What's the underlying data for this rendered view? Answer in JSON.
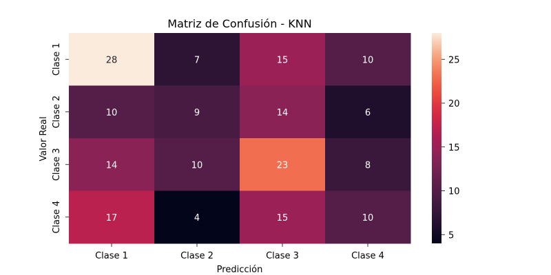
{
  "chart_data": {
    "type": "heatmap",
    "title": "Matriz de Confusión - KNN",
    "xlabel": "Predicción",
    "ylabel": "Valor Real",
    "x_categories": [
      "Clase 1",
      "Clase 2",
      "Clase 3",
      "Clase 4"
    ],
    "y_categories": [
      "Clase 1",
      "Clase 2",
      "Clase 3",
      "Clase 4"
    ],
    "values": [
      [
        28,
        7,
        15,
        10
      ],
      [
        10,
        9,
        14,
        6
      ],
      [
        14,
        10,
        23,
        8
      ],
      [
        17,
        4,
        15,
        10
      ]
    ],
    "colorbar": {
      "min": 4,
      "max": 28,
      "ticks": [
        5,
        10,
        15,
        20,
        25
      ],
      "colormap": "rocket"
    }
  }
}
